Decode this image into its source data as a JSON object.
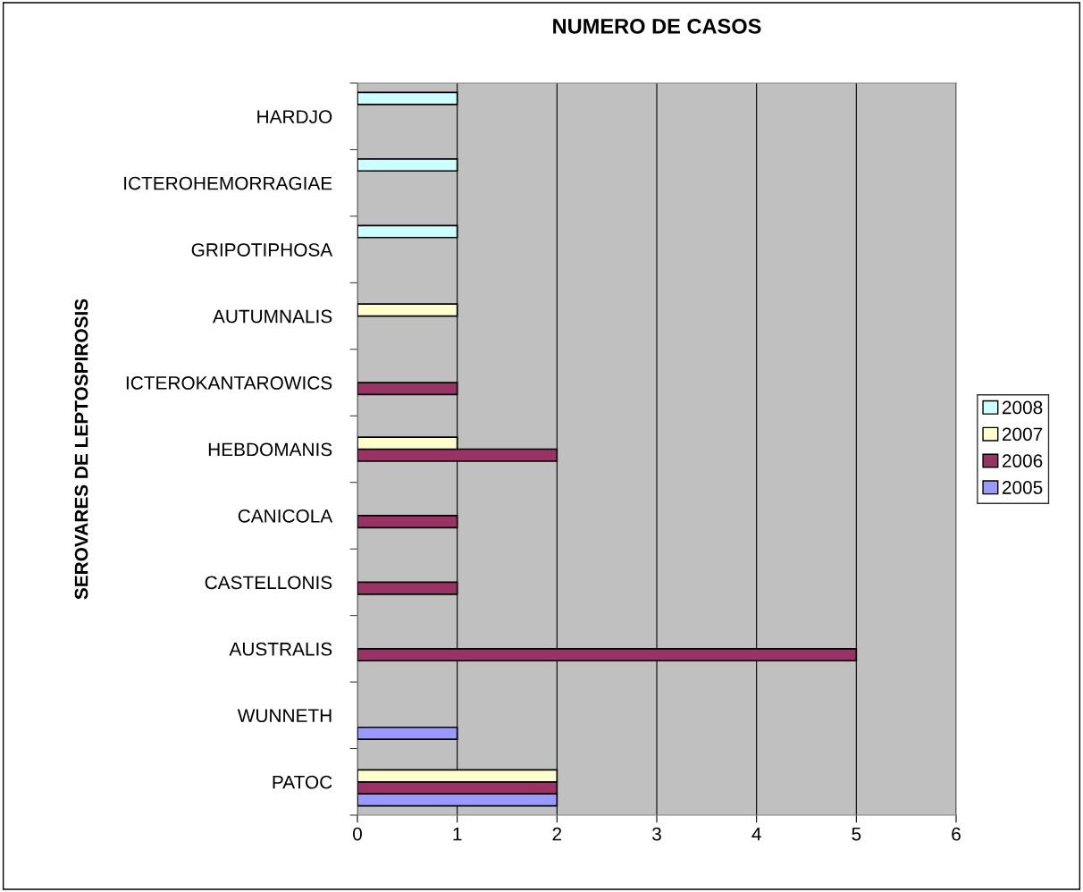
{
  "chart_data": {
    "type": "bar",
    "orientation": "horizontal",
    "title": "NUMERO DE CASOS",
    "ylabel": "SEROVARES DE LEPTOSPIROSIS",
    "categories": [
      "HARDJO",
      "ICTEROHEMORRAGIAE",
      "GRIPOTIPHOSA",
      "AUTUMNALIS",
      "ICTEROKANTAROWICS",
      "HEBDOMANIS",
      "CANICOLA",
      "CASTELLONIS",
      "AUSTRALIS",
      "WUNNETH",
      "PATOC"
    ],
    "series": [
      {
        "name": "2005",
        "color": "#9999ff",
        "values": [
          null,
          null,
          null,
          null,
          null,
          null,
          null,
          null,
          null,
          1,
          2
        ]
      },
      {
        "name": "2006",
        "color": "#993366",
        "values": [
          null,
          null,
          null,
          null,
          1,
          2,
          1,
          1,
          5,
          null,
          2
        ]
      },
      {
        "name": "2007",
        "color": "#ffffcc",
        "values": [
          null,
          null,
          null,
          1,
          null,
          1,
          null,
          null,
          null,
          null,
          2
        ]
      },
      {
        "name": "2008",
        "color": "#ccffff",
        "values": [
          1,
          1,
          1,
          null,
          null,
          null,
          null,
          null,
          null,
          null,
          null
        ]
      }
    ],
    "xlim": [
      0,
      6
    ],
    "xticks": [
      0,
      1,
      2,
      3,
      4,
      5,
      6
    ],
    "grid": "x",
    "legend": "right"
  }
}
